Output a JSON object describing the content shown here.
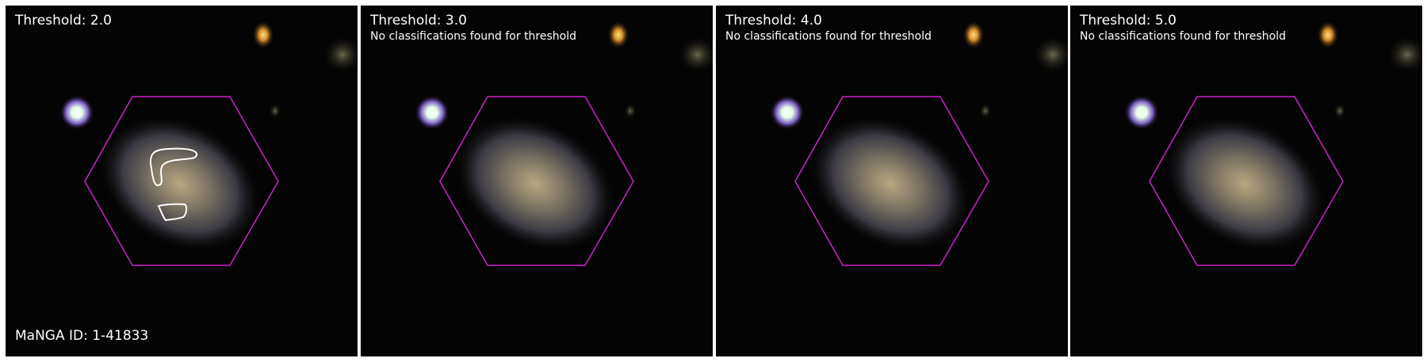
{
  "figure": {
    "manga_id_label": "MaNGA ID: 1-41833",
    "hexagon_color": "#cc22cc",
    "contour_color": "#ffffff",
    "background_color": "#000000"
  },
  "panels": [
    {
      "threshold_label": "Threshold: 2.0",
      "note": "",
      "has_contours": true
    },
    {
      "threshold_label": "Threshold: 3.0",
      "note": "No classifications found for threshold",
      "has_contours": false
    },
    {
      "threshold_label": "Threshold: 4.0",
      "note": "No classifications found for threshold",
      "has_contours": false
    },
    {
      "threshold_label": "Threshold: 5.0",
      "note": "No classifications found for threshold",
      "has_contours": false
    }
  ]
}
